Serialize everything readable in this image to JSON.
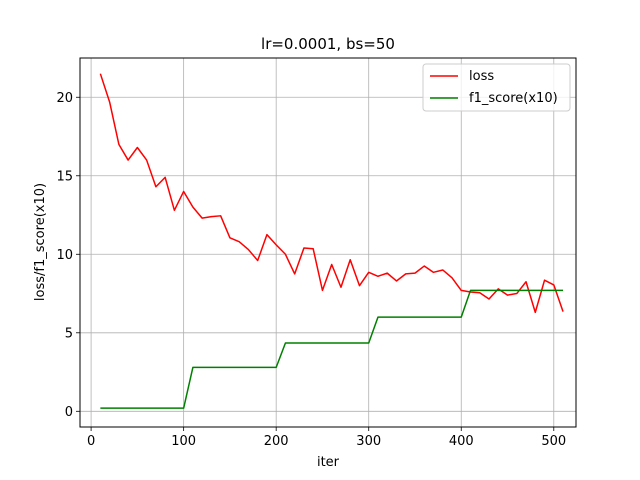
{
  "chart_data": {
    "type": "line",
    "title": "lr=0.0001, bs=50",
    "xlabel": "iter",
    "ylabel": "loss/f1_score(x10)",
    "xlim": [
      -12,
      524
    ],
    "ylim": [
      -1.0,
      22.5
    ],
    "xticks": [
      0,
      100,
      200,
      300,
      400,
      500
    ],
    "yticks": [
      0,
      5,
      10,
      15,
      20
    ],
    "grid": true,
    "legend_position": "top-right",
    "series": [
      {
        "name": "loss",
        "color": "#ff0000",
        "x": [
          10,
          20,
          30,
          40,
          50,
          60,
          70,
          80,
          90,
          100,
          110,
          120,
          130,
          140,
          150,
          160,
          170,
          180,
          190,
          200,
          210,
          220,
          230,
          240,
          250,
          260,
          270,
          280,
          290,
          300,
          310,
          320,
          330,
          340,
          350,
          360,
          370,
          380,
          390,
          400,
          410,
          420,
          430,
          440,
          450,
          460,
          470,
          480,
          490,
          500,
          510
        ],
        "y": [
          21.5,
          19.7,
          17.0,
          16.0,
          16.8,
          16.0,
          14.3,
          14.9,
          12.8,
          14.0,
          13.0,
          12.3,
          12.4,
          12.45,
          11.05,
          10.8,
          10.3,
          9.6,
          11.25,
          10.6,
          10.0,
          8.75,
          10.4,
          10.35,
          7.7,
          9.35,
          7.9,
          9.65,
          8.0,
          8.85,
          8.6,
          8.8,
          8.3,
          8.75,
          8.8,
          9.25,
          8.85,
          9.0,
          8.5,
          7.7,
          7.6,
          7.55,
          7.15,
          7.8,
          7.4,
          7.5,
          8.25,
          6.3,
          8.35,
          8.05,
          6.35
        ]
      },
      {
        "name": "f1_score(x10)",
        "color": "#008000",
        "x": [
          10,
          20,
          30,
          40,
          50,
          60,
          70,
          80,
          90,
          100,
          110,
          120,
          130,
          140,
          150,
          160,
          170,
          180,
          190,
          200,
          210,
          220,
          230,
          240,
          250,
          260,
          270,
          280,
          290,
          300,
          310,
          320,
          330,
          340,
          350,
          360,
          370,
          380,
          390,
          400,
          410,
          420,
          430,
          440,
          450,
          460,
          470,
          480,
          490,
          500,
          510
        ],
        "y": [
          0.2,
          0.2,
          0.2,
          0.2,
          0.2,
          0.2,
          0.2,
          0.2,
          0.2,
          0.2,
          2.8,
          2.8,
          2.8,
          2.8,
          2.8,
          2.8,
          2.8,
          2.8,
          2.8,
          2.8,
          4.35,
          4.35,
          4.35,
          4.35,
          4.35,
          4.35,
          4.35,
          4.35,
          4.35,
          4.35,
          6.0,
          6.0,
          6.0,
          6.0,
          6.0,
          6.0,
          6.0,
          6.0,
          6.0,
          6.0,
          7.7,
          7.7,
          7.7,
          7.7,
          7.7,
          7.7,
          7.7,
          7.7,
          7.7,
          7.7,
          7.7
        ]
      }
    ]
  }
}
